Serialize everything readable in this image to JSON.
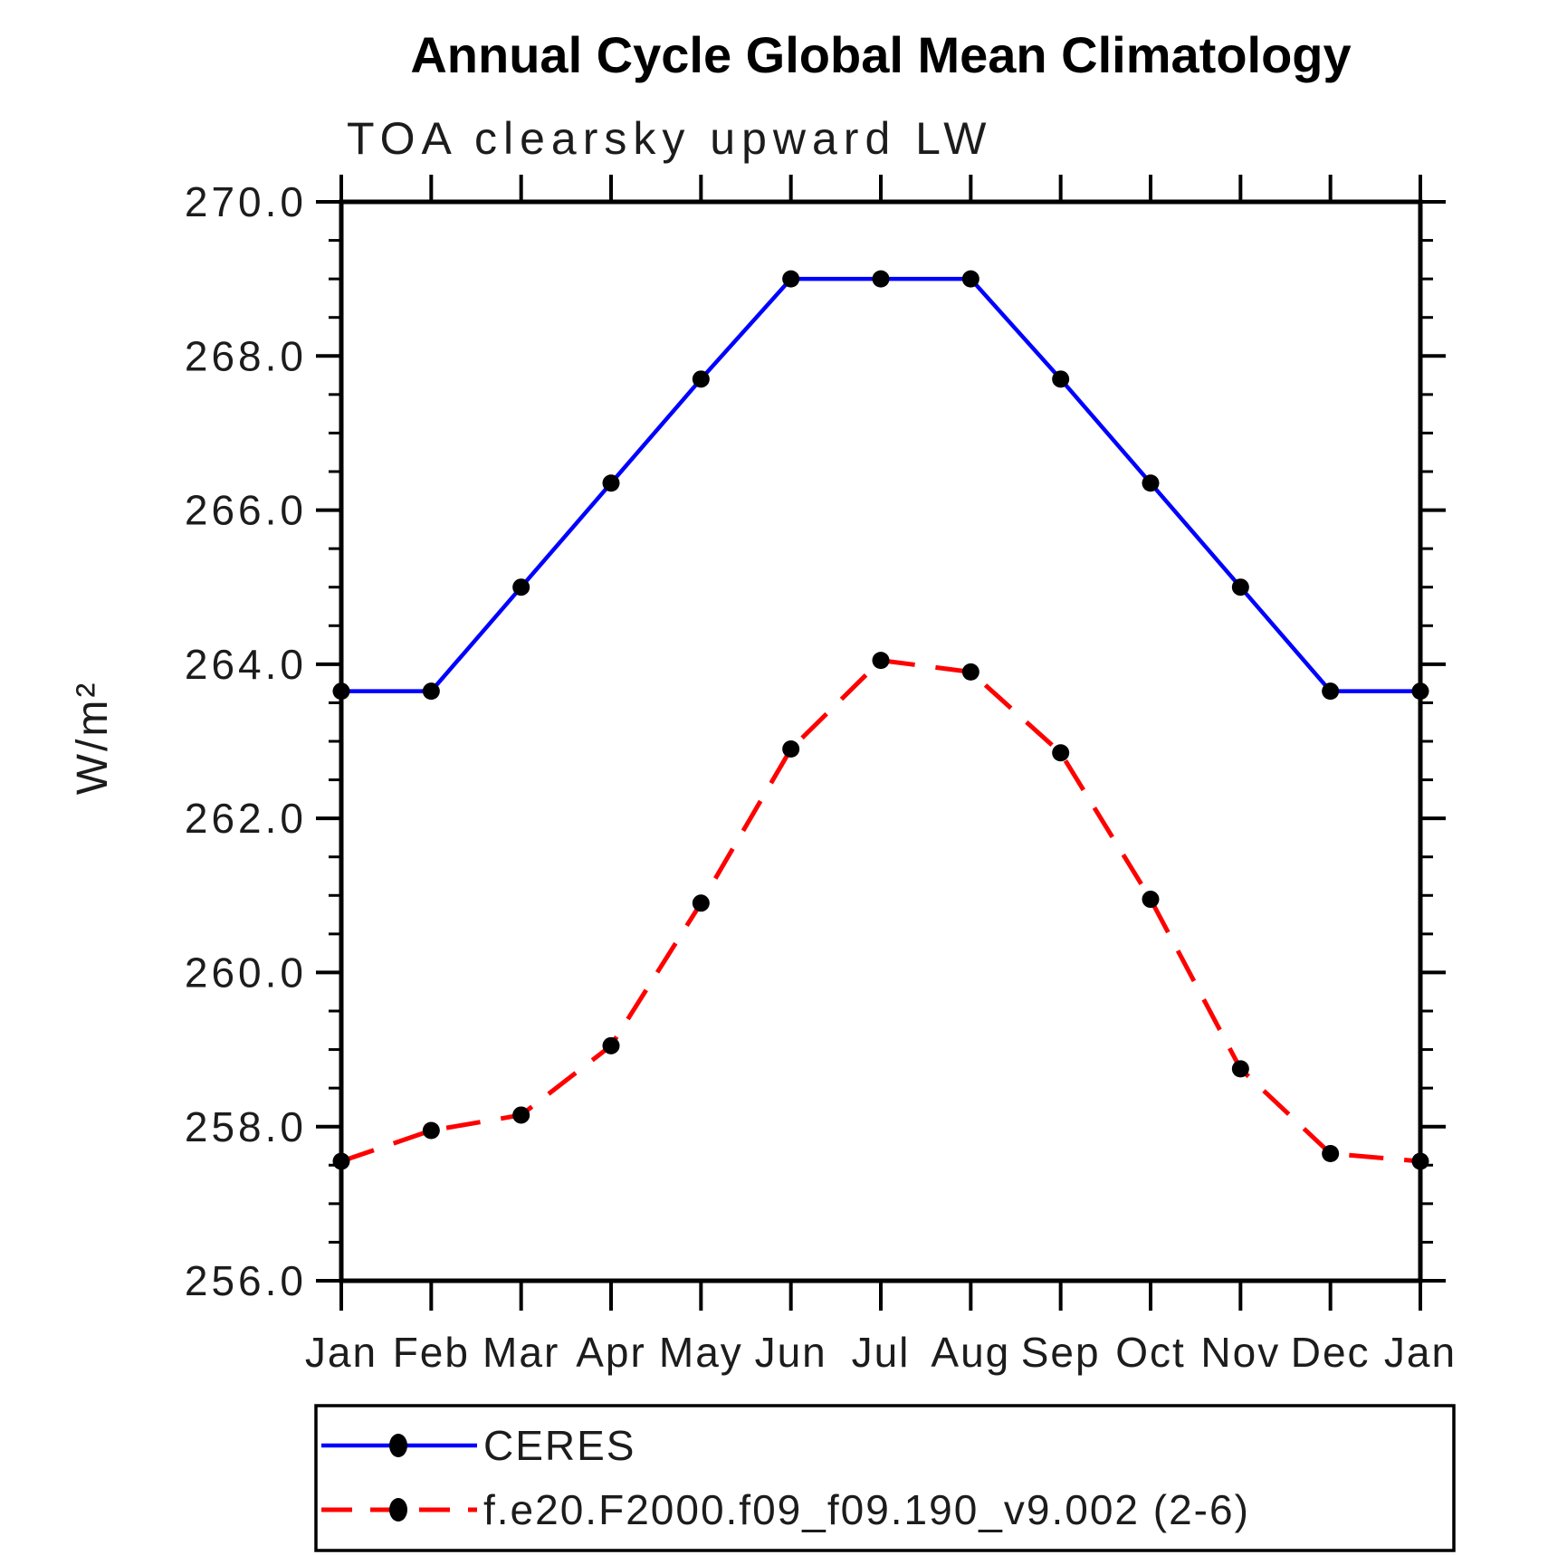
{
  "title": "Annual Cycle Global Mean Climatology",
  "subtitle": "TOA clearsky upward LW",
  "y_axis_label": "W/m²",
  "colors": {
    "ceres_line": "#0000ff",
    "model_line": "#ff0000",
    "marker": "#000000",
    "axis": "#000000",
    "label_text": "#1c1c1c",
    "background": "#ffffff"
  },
  "legend": [
    {
      "name": "ceres",
      "label": "CERES",
      "style": "solid",
      "color": "#0000ff"
    },
    {
      "name": "model",
      "label": "f.e20.F2000.f09_f09.190_v9.002 (2-6)",
      "style": "dashed",
      "color": "#ff0000"
    }
  ],
  "chart_data": {
    "type": "line",
    "title": "Annual Cycle Global Mean Climatology",
    "subtitle": "TOA clearsky upward LW",
    "ylabel": "W/m²",
    "xlabel": "",
    "x_tick_labels": [
      "Jan",
      "Feb",
      "Mar",
      "Apr",
      "May",
      "Jun",
      "Jul",
      "Aug",
      "Sep",
      "Oct",
      "Nov",
      "Dec",
      "Jan"
    ],
    "ylim": [
      256.0,
      270.0
    ],
    "y_major_step": 2.0,
    "y_minor_step": 0.5,
    "y_major_tick_labels": [
      "270.0",
      "268.0",
      "266.0",
      "264.0",
      "262.0",
      "260.0",
      "258.0",
      "256.0"
    ],
    "grid": false,
    "legend_position": "bottom",
    "marker": "filled-circle",
    "series": [
      {
        "name": "CERES",
        "values": [
          263.65,
          263.65,
          265.0,
          266.35,
          267.7,
          269.0,
          269.0,
          269.0,
          267.7,
          266.35,
          265.0,
          263.65,
          263.65
        ]
      },
      {
        "name": "f.e20.F2000.f09_f09.190_v9.002 (2-6)",
        "values": [
          257.55,
          257.95,
          258.15,
          259.05,
          260.9,
          262.9,
          264.05,
          263.9,
          262.85,
          260.95,
          258.75,
          257.65,
          257.55
        ]
      }
    ]
  }
}
